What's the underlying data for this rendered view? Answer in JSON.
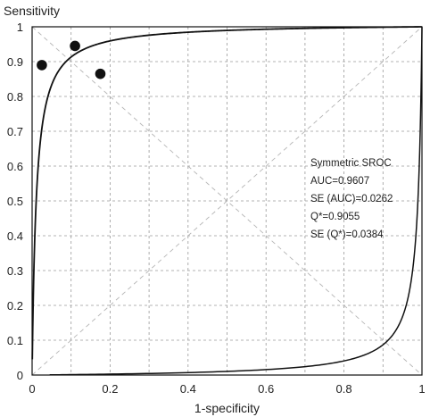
{
  "chart_data": {
    "type": "scatter",
    "title": "",
    "xlabel": "1-specificity",
    "ylabel": "Sensitivity",
    "xlim": [
      0,
      1
    ],
    "ylim": [
      0,
      1
    ],
    "x_ticks": [
      "0",
      "0.2",
      "0.4",
      "0.6",
      "0.8",
      "1"
    ],
    "y_ticks": [
      "0",
      "0.1",
      "0.2",
      "0.3",
      "0.4",
      "0.5",
      "0.6",
      "0.7",
      "0.8",
      "0.9",
      "1"
    ],
    "x_tick_values": [
      0,
      0.2,
      0.4,
      0.6,
      0.8,
      1
    ],
    "y_tick_values": [
      0,
      0.1,
      0.2,
      0.3,
      0.4,
      0.5,
      0.6,
      0.7,
      0.8,
      0.9,
      1
    ],
    "grid": true,
    "points": [
      {
        "x": 0.025,
        "y": 0.89
      },
      {
        "x": 0.11,
        "y": 0.945
      },
      {
        "x": 0.175,
        "y": 0.865
      }
    ],
    "curve": {
      "type": "symmetric-sroc",
      "auc": 0.9607
    },
    "annotation": [
      "Symmetric SROC",
      "AUC=0.9607",
      "SE (AUC)=0.0262",
      "Q*=0.9055",
      "SE (Q*)=0.0384"
    ]
  }
}
